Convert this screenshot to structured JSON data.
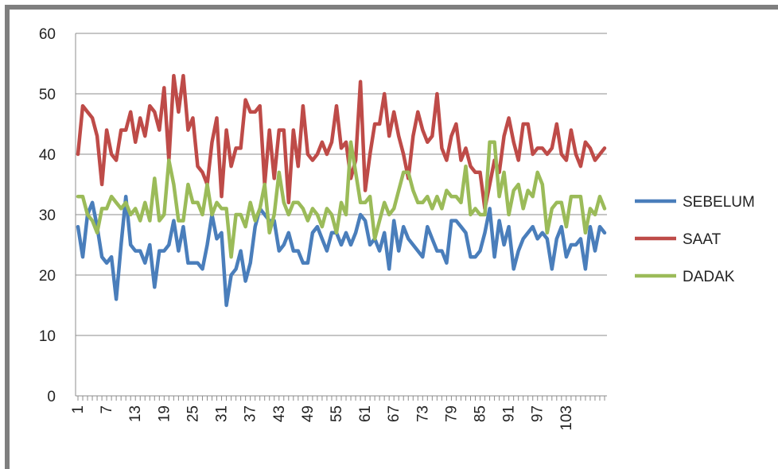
{
  "chart_data": {
    "type": "line",
    "title": "",
    "xlabel": "",
    "ylabel": "",
    "ylim": [
      0,
      60
    ],
    "yticks": [
      "0",
      "10",
      "20",
      "30",
      "40",
      "50",
      "60"
    ],
    "xticks": [
      "1",
      "7",
      "13",
      "19",
      "25",
      "31",
      "37",
      "43",
      "49",
      "55",
      "61",
      "67",
      "73",
      "79",
      "85",
      "91",
      "97",
      "103"
    ],
    "grid": "horizontal",
    "legend_position": "right",
    "x": [
      1,
      2,
      3,
      4,
      5,
      6,
      7,
      8,
      9,
      10,
      11,
      12,
      13,
      14,
      15,
      16,
      17,
      18,
      19,
      20,
      21,
      22,
      23,
      24,
      25,
      26,
      27,
      28,
      29,
      30,
      31,
      32,
      33,
      34,
      35,
      36,
      37,
      38,
      39,
      40,
      41,
      42,
      43,
      44,
      45,
      46,
      47,
      48,
      49,
      50,
      51,
      52,
      53,
      54,
      55,
      56,
      57,
      58,
      59,
      60,
      61,
      62,
      63,
      64,
      65,
      66,
      67,
      68,
      69,
      70,
      71,
      72,
      73,
      74,
      75,
      76,
      77,
      78,
      79,
      80,
      81,
      82,
      83,
      84,
      85,
      86,
      87,
      88,
      89,
      90,
      91,
      92,
      93,
      94,
      95,
      96,
      97,
      98,
      99,
      100,
      101,
      102,
      103,
      104,
      105,
      106,
      107,
      108,
      109,
      110,
      111
    ],
    "series": [
      {
        "name": "SEBELUM",
        "color": "#4A7EBB",
        "values": [
          28,
          23,
          30,
          32,
          28,
          23,
          22,
          23,
          16,
          25,
          33,
          25,
          24,
          24,
          22,
          25,
          18,
          24,
          24,
          25,
          29,
          24,
          28,
          22,
          22,
          22,
          21,
          25,
          30,
          26,
          27,
          15,
          20,
          21,
          24,
          19,
          22,
          28,
          31,
          30,
          29,
          29,
          24,
          25,
          27,
          24,
          24,
          22,
          22,
          27,
          28,
          26,
          24,
          27,
          27,
          25,
          27,
          25,
          27,
          30,
          29,
          25,
          26,
          24,
          27,
          21,
          29,
          24,
          28,
          26,
          25,
          24,
          23,
          28,
          26,
          24,
          24,
          22,
          29,
          29,
          28,
          27,
          23,
          23,
          24,
          27,
          31,
          23,
          29,
          25,
          28,
          21,
          24,
          26,
          27,
          28,
          26,
          27,
          26,
          21,
          26,
          28,
          23,
          25,
          25,
          26,
          21,
          28,
          24,
          28,
          27
        ]
      },
      {
        "name": "SAAT",
        "color": "#BE4B48",
        "values": [
          40,
          48,
          47,
          46,
          43,
          35,
          44,
          40,
          39,
          44,
          44,
          47,
          42,
          46,
          43,
          48,
          47,
          44,
          51,
          39,
          53,
          47,
          53,
          44,
          46,
          38,
          37,
          35,
          42,
          46,
          33,
          44,
          38,
          41,
          41,
          49,
          47,
          47,
          48,
          35,
          44,
          36,
          44,
          44,
          32,
          44,
          38,
          48,
          40,
          39,
          40,
          42,
          40,
          42,
          48,
          41,
          42,
          36,
          39,
          52,
          34,
          40,
          45,
          45,
          50,
          43,
          47,
          43,
          40,
          36,
          43,
          47,
          44,
          42,
          43,
          50,
          41,
          39,
          43,
          45,
          39,
          41,
          38,
          37,
          37,
          31,
          35,
          39,
          37,
          43,
          46,
          42,
          39,
          45,
          45,
          40,
          41,
          41,
          40,
          41,
          45,
          40,
          39,
          44,
          40,
          38,
          42,
          41,
          39,
          40,
          41
        ]
      },
      {
        "name": "DADAK",
        "color": "#9BBB59",
        "values": [
          33,
          33,
          30,
          29,
          27,
          31,
          31,
          33,
          32,
          31,
          32,
          30,
          31,
          29,
          32,
          29,
          36,
          29,
          30,
          39,
          35,
          29,
          29,
          35,
          32,
          32,
          30,
          35,
          30,
          32,
          31,
          31,
          23,
          30,
          30,
          28,
          32,
          29,
          31,
          35,
          27,
          30,
          37,
          32,
          30,
          32,
          32,
          31,
          29,
          31,
          30,
          28,
          31,
          30,
          27,
          32,
          30,
          42,
          37,
          32,
          32,
          33,
          26,
          29,
          32,
          30,
          31,
          34,
          37,
          37,
          34,
          32,
          32,
          33,
          31,
          33,
          31,
          34,
          33,
          33,
          32,
          38,
          30,
          31,
          30,
          30,
          42,
          42,
          33,
          37,
          30,
          34,
          35,
          31,
          34,
          33,
          37,
          35,
          27,
          31,
          32,
          32,
          28,
          33,
          33,
          33,
          27,
          31,
          30,
          33,
          31
        ]
      }
    ]
  }
}
